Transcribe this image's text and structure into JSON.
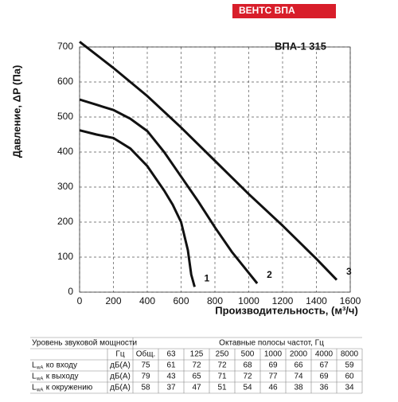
{
  "header": {
    "brand": "ВЕНТС ВПА"
  },
  "chart_data": {
    "type": "line",
    "title": "ВПА-1 315",
    "x_label": "Производительность, (м³/ч)",
    "y_label": "Давление, ΔP (Па)",
    "xlim": [
      0,
      1600
    ],
    "xticks": [
      0,
      200,
      400,
      600,
      800,
      1000,
      1200,
      1400,
      1600
    ],
    "ylim": [
      0,
      700
    ],
    "yticks": [
      0,
      100,
      200,
      300,
      400,
      500,
      600,
      700
    ],
    "grid": true,
    "series": [
      {
        "name": "1",
        "color": "#111111",
        "x": [
          0,
          100,
          200,
          300,
          400,
          500,
          550,
          600,
          640,
          660,
          680
        ],
        "values": [
          462,
          450,
          440,
          410,
          360,
          290,
          250,
          200,
          120,
          50,
          15
        ]
      },
      {
        "name": "2",
        "color": "#111111",
        "x": [
          0,
          100,
          200,
          300,
          400,
          500,
          600,
          700,
          800,
          900,
          1000,
          1050
        ],
        "values": [
          550,
          535,
          520,
          495,
          460,
          400,
          330,
          260,
          185,
          115,
          55,
          25
        ]
      },
      {
        "name": "3",
        "color": "#111111",
        "x": [
          0,
          200,
          400,
          600,
          800,
          1000,
          1200,
          1400,
          1520
        ],
        "values": [
          715,
          640,
          560,
          470,
          375,
          280,
          190,
          95,
          35
        ]
      }
    ]
  },
  "table": {
    "title": "Уровень звуковой мощности",
    "bands_title": "Октавные полосы частот, Гц",
    "unit_header": "Гц",
    "columns": [
      "Общ.",
      "63",
      "125",
      "250",
      "500",
      "1000",
      "2000",
      "4000",
      "8000"
    ],
    "rows": [
      {
        "symbol": "L",
        "sub": "wA",
        "label": " ко входу",
        "unit": "дБ(А)",
        "values": [
          75,
          61,
          72,
          72,
          68,
          69,
          66,
          67,
          59
        ]
      },
      {
        "symbol": "L",
        "sub": "wA",
        "label": " к выходу",
        "unit": "дБ(А)",
        "values": [
          79,
          43,
          65,
          71,
          72,
          77,
          74,
          69,
          60
        ]
      },
      {
        "symbol": "L",
        "sub": "wA",
        "label": " к окружению",
        "unit": "дБ(А)",
        "values": [
          58,
          37,
          47,
          51,
          54,
          46,
          38,
          36,
          34
        ]
      }
    ]
  }
}
